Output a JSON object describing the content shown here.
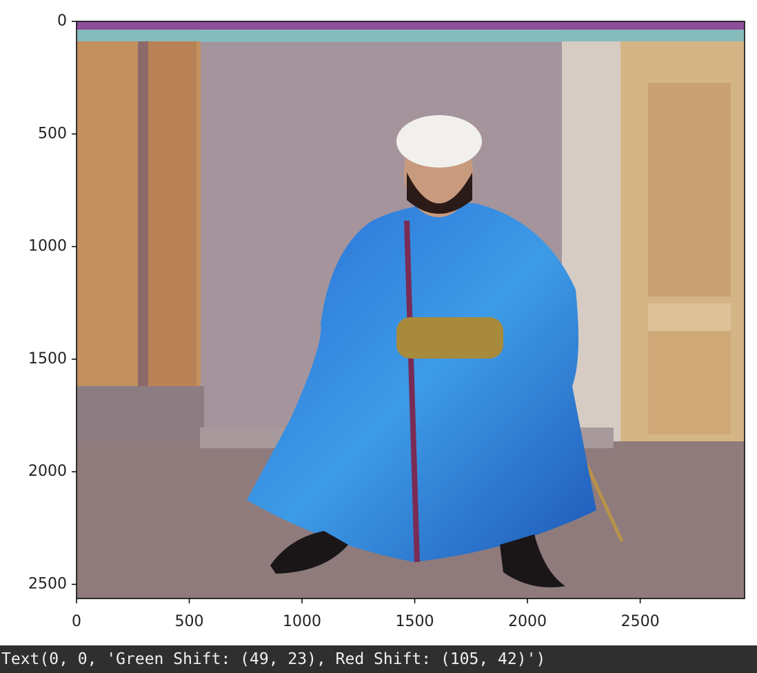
{
  "chart_data": {
    "type": "image",
    "xlim": [
      0,
      2963
    ],
    "ylim": [
      2563,
      0
    ],
    "xticks": [
      0,
      500,
      1000,
      1500,
      2000,
      2500
    ],
    "yticks": [
      0,
      500,
      1000,
      1500,
      2000,
      2500
    ]
  },
  "output_text": "Text(0, 0, 'Green Shift: (49, 23), Red Shift: (105, 42)')"
}
